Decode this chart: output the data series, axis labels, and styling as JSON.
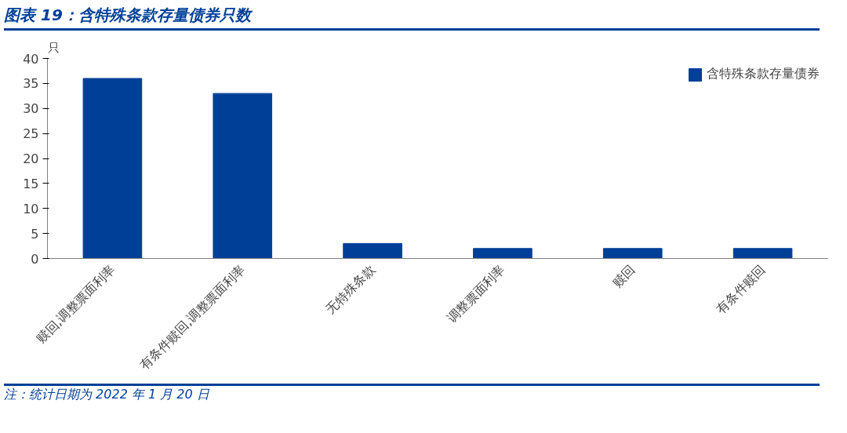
{
  "chart_data": {
    "type": "bar",
    "title": "图表 19：含特殊条款存量债券只数",
    "ylabel": "只",
    "categories": [
      "赎回,调整票面利率",
      "有条件赎回,调整票面利率",
      "无特殊条款",
      "调整票面利率",
      "赎回",
      "有条件赎回"
    ],
    "series": [
      {
        "name": "含特殊条款存量债券",
        "color": "#003f98",
        "values": [
          36,
          33,
          3,
          2,
          2,
          2
        ]
      }
    ],
    "ylim": [
      0,
      40
    ],
    "yticks": [
      0,
      5,
      10,
      15,
      20,
      25,
      30,
      35,
      40
    ],
    "grid": false,
    "legend": "top right",
    "annotations": [
      "注：统计日期为 2022 年 1 月 20 日"
    ]
  }
}
